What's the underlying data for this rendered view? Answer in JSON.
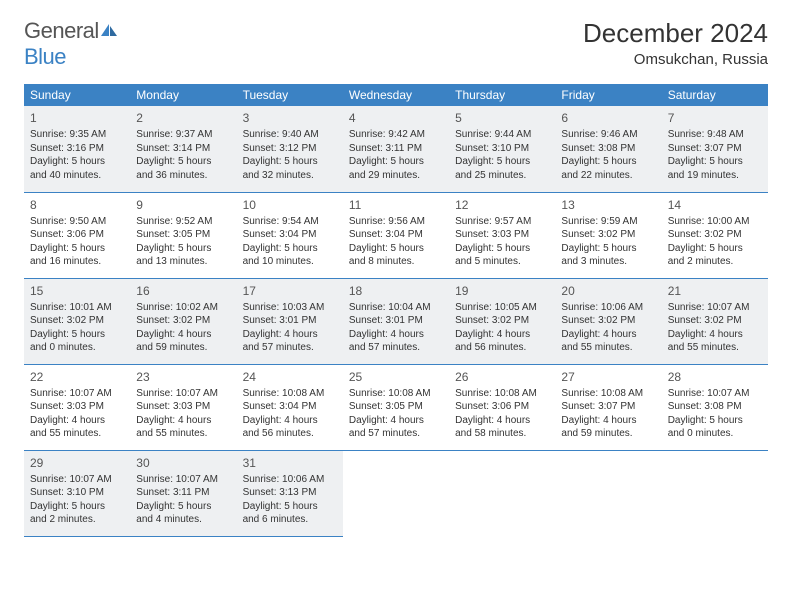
{
  "brand": {
    "part1": "General",
    "part2": "Blue"
  },
  "title": "December 2024",
  "location": "Omsukchan, Russia",
  "colors": {
    "header_bg": "#3b82c4",
    "header_text": "#ffffff",
    "shade_bg": "#eef0f2",
    "text": "#333333",
    "border": "#3b82c4"
  },
  "weekdays": [
    "Sunday",
    "Monday",
    "Tuesday",
    "Wednesday",
    "Thursday",
    "Friday",
    "Saturday"
  ],
  "days": [
    {
      "n": 1,
      "sr": "9:35 AM",
      "ss": "3:16 PM",
      "dl": "5 hours and 40 minutes."
    },
    {
      "n": 2,
      "sr": "9:37 AM",
      "ss": "3:14 PM",
      "dl": "5 hours and 36 minutes."
    },
    {
      "n": 3,
      "sr": "9:40 AM",
      "ss": "3:12 PM",
      "dl": "5 hours and 32 minutes."
    },
    {
      "n": 4,
      "sr": "9:42 AM",
      "ss": "3:11 PM",
      "dl": "5 hours and 29 minutes."
    },
    {
      "n": 5,
      "sr": "9:44 AM",
      "ss": "3:10 PM",
      "dl": "5 hours and 25 minutes."
    },
    {
      "n": 6,
      "sr": "9:46 AM",
      "ss": "3:08 PM",
      "dl": "5 hours and 22 minutes."
    },
    {
      "n": 7,
      "sr": "9:48 AM",
      "ss": "3:07 PM",
      "dl": "5 hours and 19 minutes."
    },
    {
      "n": 8,
      "sr": "9:50 AM",
      "ss": "3:06 PM",
      "dl": "5 hours and 16 minutes."
    },
    {
      "n": 9,
      "sr": "9:52 AM",
      "ss": "3:05 PM",
      "dl": "5 hours and 13 minutes."
    },
    {
      "n": 10,
      "sr": "9:54 AM",
      "ss": "3:04 PM",
      "dl": "5 hours and 10 minutes."
    },
    {
      "n": 11,
      "sr": "9:56 AM",
      "ss": "3:04 PM",
      "dl": "5 hours and 8 minutes."
    },
    {
      "n": 12,
      "sr": "9:57 AM",
      "ss": "3:03 PM",
      "dl": "5 hours and 5 minutes."
    },
    {
      "n": 13,
      "sr": "9:59 AM",
      "ss": "3:02 PM",
      "dl": "5 hours and 3 minutes."
    },
    {
      "n": 14,
      "sr": "10:00 AM",
      "ss": "3:02 PM",
      "dl": "5 hours and 2 minutes."
    },
    {
      "n": 15,
      "sr": "10:01 AM",
      "ss": "3:02 PM",
      "dl": "5 hours and 0 minutes."
    },
    {
      "n": 16,
      "sr": "10:02 AM",
      "ss": "3:02 PM",
      "dl": "4 hours and 59 minutes."
    },
    {
      "n": 17,
      "sr": "10:03 AM",
      "ss": "3:01 PM",
      "dl": "4 hours and 57 minutes."
    },
    {
      "n": 18,
      "sr": "10:04 AM",
      "ss": "3:01 PM",
      "dl": "4 hours and 57 minutes."
    },
    {
      "n": 19,
      "sr": "10:05 AM",
      "ss": "3:02 PM",
      "dl": "4 hours and 56 minutes."
    },
    {
      "n": 20,
      "sr": "10:06 AM",
      "ss": "3:02 PM",
      "dl": "4 hours and 55 minutes."
    },
    {
      "n": 21,
      "sr": "10:07 AM",
      "ss": "3:02 PM",
      "dl": "4 hours and 55 minutes."
    },
    {
      "n": 22,
      "sr": "10:07 AM",
      "ss": "3:03 PM",
      "dl": "4 hours and 55 minutes."
    },
    {
      "n": 23,
      "sr": "10:07 AM",
      "ss": "3:03 PM",
      "dl": "4 hours and 55 minutes."
    },
    {
      "n": 24,
      "sr": "10:08 AM",
      "ss": "3:04 PM",
      "dl": "4 hours and 56 minutes."
    },
    {
      "n": 25,
      "sr": "10:08 AM",
      "ss": "3:05 PM",
      "dl": "4 hours and 57 minutes."
    },
    {
      "n": 26,
      "sr": "10:08 AM",
      "ss": "3:06 PM",
      "dl": "4 hours and 58 minutes."
    },
    {
      "n": 27,
      "sr": "10:08 AM",
      "ss": "3:07 PM",
      "dl": "4 hours and 59 minutes."
    },
    {
      "n": 28,
      "sr": "10:07 AM",
      "ss": "3:08 PM",
      "dl": "5 hours and 0 minutes."
    },
    {
      "n": 29,
      "sr": "10:07 AM",
      "ss": "3:10 PM",
      "dl": "5 hours and 2 minutes."
    },
    {
      "n": 30,
      "sr": "10:07 AM",
      "ss": "3:11 PM",
      "dl": "5 hours and 4 minutes."
    },
    {
      "n": 31,
      "sr": "10:06 AM",
      "ss": "3:13 PM",
      "dl": "5 hours and 6 minutes."
    }
  ],
  "labels": {
    "sunrise": "Sunrise:",
    "sunset": "Sunset:",
    "daylight": "Daylight:"
  },
  "layout": {
    "first_weekday_offset": 0,
    "weeks": 5,
    "cols": 7
  }
}
